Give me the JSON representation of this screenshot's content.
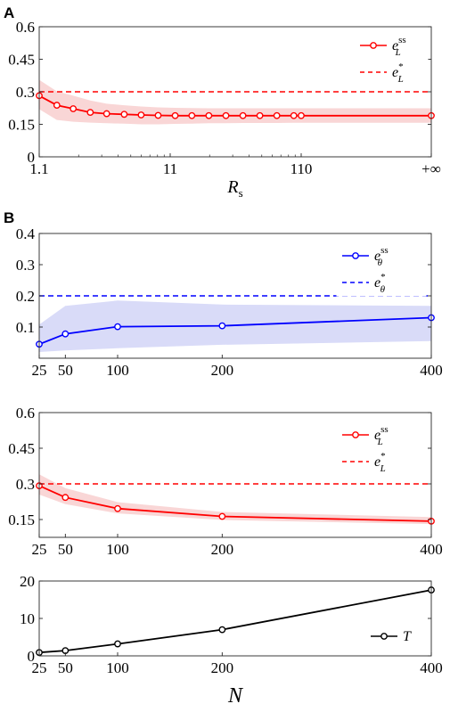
{
  "panel_labels": [
    "A",
    "B"
  ],
  "chart_data": [
    {
      "id": "A",
      "type": "line",
      "x_tick_labels": [
        "1.1",
        "11",
        "110",
        "+∞"
      ],
      "xlabel_main": "R",
      "xlabel_sub": "s",
      "ylim": [
        0,
        0.6
      ],
      "y_ticks": [
        0,
        0.15,
        0.3,
        0.45,
        0.6
      ],
      "y_tick_labels": [
        "0",
        "0.15",
        "0.3",
        "0.45",
        "0.6"
      ],
      "x_scale": "log",
      "x_positions": [
        1.1,
        1.5,
        2.0,
        2.7,
        3.6,
        4.9,
        6.6,
        8.9,
        12.0,
        16.1,
        21.7,
        29.3,
        39.5,
        53.2,
        71.7,
        96.6,
        110,
        "+∞"
      ],
      "series": [
        {
          "legend_main": "e",
          "legend_sup": "ss",
          "legend_sub": "L",
          "color": "#ff0000",
          "style": "solid-marker",
          "values": [
            0.282,
            0.238,
            0.222,
            0.205,
            0.199,
            0.196,
            0.193,
            0.191,
            0.19,
            0.19,
            0.19,
            0.19,
            0.19,
            0.19,
            0.19,
            0.19,
            0.19,
            0.19
          ],
          "band_low": [
            0.22,
            0.17,
            0.162,
            0.158,
            0.155,
            0.153,
            0.15,
            0.15,
            0.152,
            0.153,
            0.155,
            0.155,
            0.156,
            0.156,
            0.156,
            0.157,
            0.157,
            0.157
          ],
          "band_high": [
            0.355,
            0.302,
            0.282,
            0.26,
            0.245,
            0.238,
            0.232,
            0.228,
            0.226,
            0.225,
            0.224,
            0.224,
            0.224,
            0.224,
            0.224,
            0.224,
            0.224,
            0.224
          ]
        },
        {
          "legend_main": "e",
          "legend_sup": "*",
          "legend_sub": "L",
          "color": "#ff0000",
          "style": "dashed",
          "value": 0.3
        }
      ],
      "legend_position": "top-right",
      "band_color": "#f9d6d6"
    },
    {
      "id": "B1",
      "type": "line",
      "x": [
        25,
        50,
        100,
        200,
        400
      ],
      "x_tick_labels": [
        "25",
        "50",
        "100",
        "200",
        "400"
      ],
      "ylim": [
        0,
        0.4
      ],
      "y_ticks": [
        0.1,
        0.2,
        0.3,
        0.4
      ],
      "y_tick_labels": [
        "0.1",
        "0.2",
        "0.3",
        "0.4"
      ],
      "series": [
        {
          "legend_main": "e",
          "legend_sup": "ss",
          "legend_sub": "θ",
          "color": "#0000ff",
          "style": "solid-marker",
          "values": [
            0.045,
            0.078,
            0.101,
            0.104,
            0.13
          ],
          "band_low": [
            0.02,
            0.025,
            0.032,
            0.043,
            0.055
          ],
          "band_high": [
            0.108,
            0.168,
            0.185,
            0.172,
            0.168
          ]
        },
        {
          "legend_main": "e",
          "legend_sup": "*",
          "legend_sub": "θ",
          "color": "#0000ff",
          "style": "dashed",
          "value": 0.2
        }
      ],
      "legend_position": "top-right",
      "band_color": "#d9dbf8"
    },
    {
      "id": "B2",
      "type": "line",
      "x": [
        25,
        50,
        100,
        200,
        400
      ],
      "x_tick_labels": [
        "25",
        "50",
        "100",
        "200",
        "400"
      ],
      "ylim": [
        0.075,
        0.6
      ],
      "y_ticks": [
        0.15,
        0.3,
        0.45,
        0.6
      ],
      "y_tick_labels": [
        "0.15",
        "0.3",
        "0.45",
        "0.6"
      ],
      "series": [
        {
          "legend_main": "e",
          "legend_sup": "ss",
          "legend_sub": "L",
          "color": "#ff0000",
          "style": "solid-marker",
          "values": [
            0.292,
            0.243,
            0.196,
            0.163,
            0.143
          ],
          "band_low": [
            0.255,
            0.215,
            0.176,
            0.148,
            0.131
          ],
          "band_high": [
            0.34,
            0.282,
            0.223,
            0.182,
            0.16
          ]
        },
        {
          "legend_main": "e",
          "legend_sup": "*",
          "legend_sub": "L",
          "color": "#ff0000",
          "style": "dashed",
          "value": 0.3
        }
      ],
      "legend_position": "top-right",
      "band_color": "#f9d6d6"
    },
    {
      "id": "B3",
      "type": "line",
      "x": [
        25,
        50,
        100,
        200,
        400
      ],
      "x_tick_labels": [
        "25",
        "50",
        "100",
        "200",
        "400"
      ],
      "xlabel_main": "N",
      "ylim": [
        0,
        20
      ],
      "y_ticks": [
        0,
        10,
        20
      ],
      "y_tick_labels": [
        "0",
        "10",
        "20"
      ],
      "series": [
        {
          "legend_main": "T",
          "color": "#000000",
          "style": "solid-marker",
          "values": [
            0.9,
            1.4,
            3.2,
            7.0,
            17.6
          ]
        }
      ],
      "legend_position": "bottom-right"
    }
  ]
}
